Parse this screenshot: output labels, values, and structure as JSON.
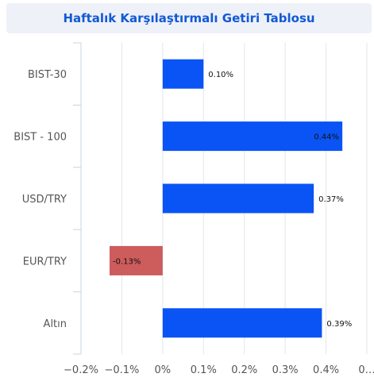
{
  "chart_data": {
    "type": "bar",
    "orientation": "horizontal",
    "title": "Haftalık Karşılaştırmalı Getiri Tablosu",
    "categories": [
      "BIST-30",
      "BIST - 100",
      "USD/TRY",
      "EUR/TRY",
      "Altın"
    ],
    "values": [
      0.1,
      0.44,
      0.37,
      -0.13,
      0.39
    ],
    "data_labels": [
      "0.10%",
      "0.44%",
      "0.37%",
      "-0.13%",
      "0.39%"
    ],
    "x_ticks": [
      {
        "value": -0.2,
        "label": "−0.2%"
      },
      {
        "value": -0.1,
        "label": "−0.1%"
      },
      {
        "value": 0.0,
        "label": "0%"
      },
      {
        "value": 0.1,
        "label": "0.1%"
      },
      {
        "value": 0.2,
        "label": "0.2%"
      },
      {
        "value": 0.3,
        "label": "0.3%"
      },
      {
        "value": 0.4,
        "label": "0.4%"
      },
      {
        "value": 0.5,
        "label": "0…"
      }
    ],
    "xlim": [
      -0.2,
      0.5
    ],
    "grid": "vertical",
    "colors": {
      "positive": "#0a54f5",
      "negative": "#cd5c5c",
      "title": "#1259d6",
      "title_bg": "#eef1f8",
      "grid": "#e3e6ec",
      "axis": "#c9d3e6"
    }
  }
}
